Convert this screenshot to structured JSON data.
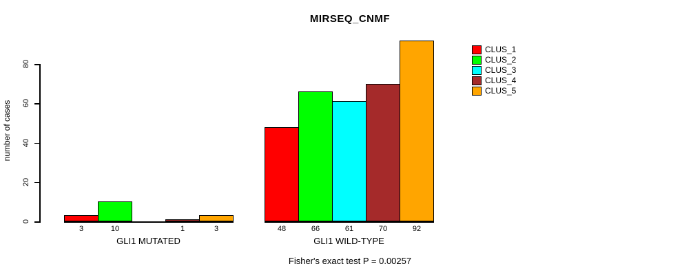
{
  "chart_data": {
    "type": "bar",
    "title": "MIRSEQ_CNMF",
    "ylabel": "number of cases",
    "yticks": [
      0,
      20,
      40,
      60,
      80
    ],
    "ylim": [
      0,
      95
    ],
    "grid": false,
    "legend_position": "right-outside",
    "categories": [
      "GLI1 MUTATED",
      "GLI1 WILD-TYPE"
    ],
    "series": [
      {
        "name": "CLUS_1",
        "color": "#ff0000",
        "values": [
          3,
          48
        ]
      },
      {
        "name": "CLUS_2",
        "color": "#00ff00",
        "values": [
          10,
          66
        ]
      },
      {
        "name": "CLUS_3",
        "color": "#00ffff",
        "values": [
          0,
          61
        ]
      },
      {
        "name": "CLUS_4",
        "color": "#a52a2a",
        "values": [
          1,
          70
        ]
      },
      {
        "name": "CLUS_5",
        "color": "#ffa500",
        "values": [
          3,
          92
        ]
      }
    ],
    "bar_value_labels": [
      [
        "3",
        "10",
        "",
        "1",
        "3"
      ],
      [
        "48",
        "66",
        "61",
        "70",
        "92"
      ]
    ],
    "footer": "Fisher's exact test P = 0.00257"
  }
}
